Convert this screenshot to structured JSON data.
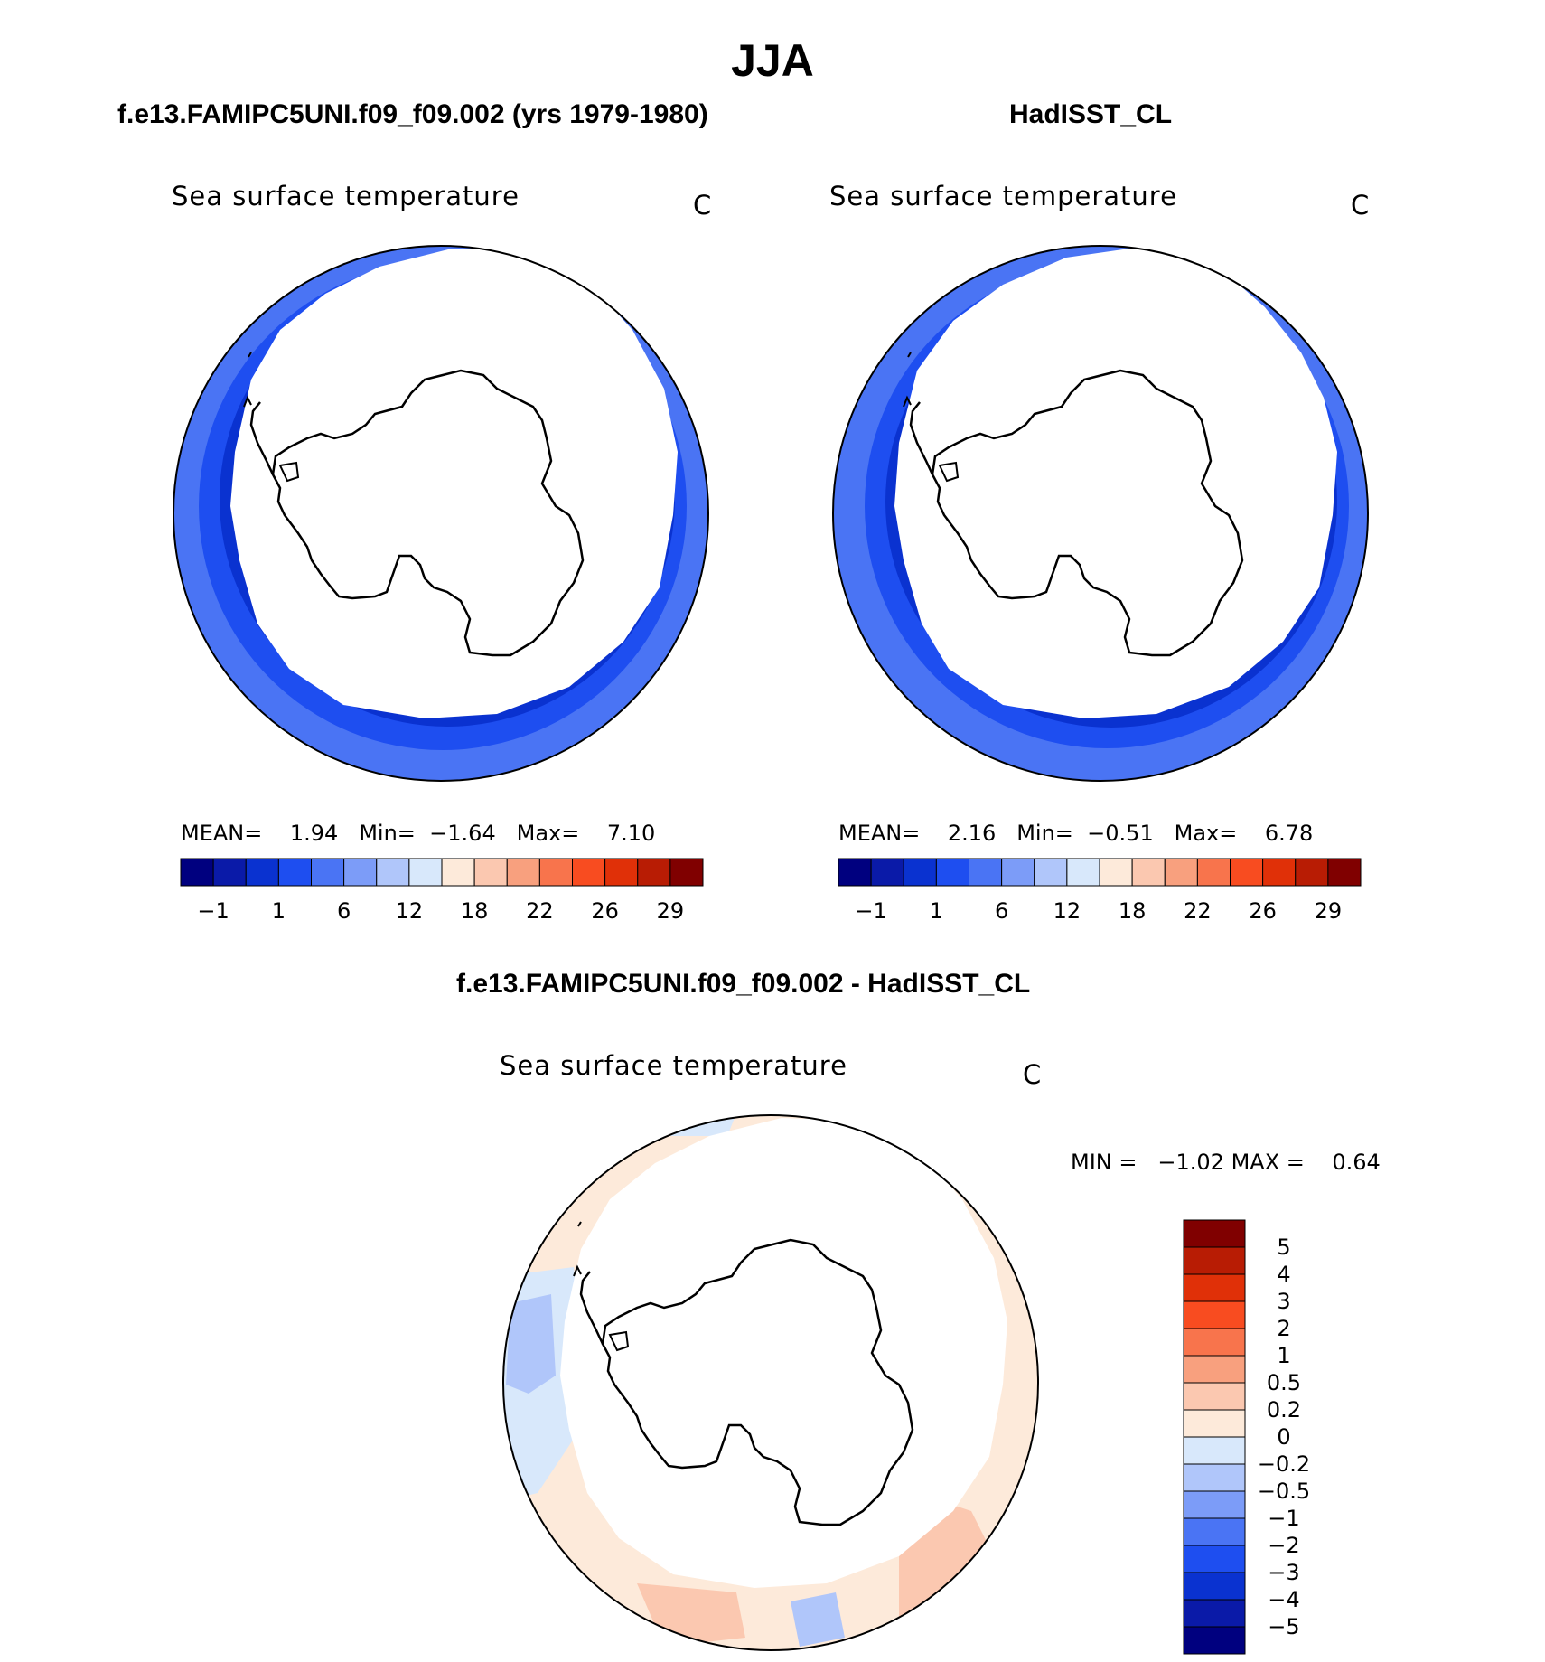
{
  "title": "JJA",
  "panels": [
    {
      "id": "model",
      "header": "f.e13.FAMIPC5UNI.f09_f09.002 (yrs 1979-1980)",
      "plot_title": "Sea surface temperature",
      "units": "C",
      "stats": {
        "mean_label": "MEAN=",
        "mean": "1.94",
        "min_label": "Min=",
        "min": "−1.64",
        "max_label": "Max=",
        "max": "7.10"
      }
    },
    {
      "id": "obs",
      "header": "HadISST_CL",
      "plot_title": "Sea surface temperature",
      "units": "C",
      "stats": {
        "mean_label": "MEAN=",
        "mean": "2.16",
        "min_label": "Min=",
        "min": "−0.51",
        "max_label": "Max=",
        "max": "6.78"
      }
    },
    {
      "id": "diff",
      "header": "f.e13.FAMIPC5UNI.f09_f09.002 - HadISST_CL",
      "plot_title": "Sea surface temperature",
      "units": "C",
      "stats": {
        "min_label": "MIN =",
        "min": "−1.02",
        "max_label": "MAX =",
        "max": "0.64"
      }
    }
  ],
  "colorbar_main": {
    "colors": [
      "#00007f",
      "#0a1aa8",
      "#0a32d0",
      "#1e4ef0",
      "#4a74f4",
      "#7c9cf8",
      "#b0c6fa",
      "#d8e8fb",
      "#fdeada",
      "#fbc8b0",
      "#f8a07e",
      "#f8744c",
      "#f84c20",
      "#e03008",
      "#b81c04",
      "#800000"
    ],
    "tick_labels": [
      "−1",
      "1",
      "6",
      "12",
      "18",
      "22",
      "26",
      "29"
    ]
  },
  "colorbar_diff": {
    "colors": [
      "#800000",
      "#b81c04",
      "#e03008",
      "#f84c20",
      "#f8744c",
      "#f8a07e",
      "#fbc8b0",
      "#fdeada",
      "#d8e8fb",
      "#b0c6fa",
      "#7c9cf8",
      "#4a74f4",
      "#1e4ef0",
      "#0a32d0",
      "#0a1aa8",
      "#00007f"
    ],
    "tick_labels": [
      "5",
      "4",
      "3",
      "2",
      "1",
      "0.5",
      "0.2",
      "0",
      "−0.2",
      "−0.5",
      "−1",
      "−2",
      "−3",
      "−4",
      "−5"
    ]
  },
  "colors": {
    "ice": "#ffffff",
    "cold_band": "#0a32d0",
    "mid_band": "#1e4ef0",
    "warm_band": "#4a74f4",
    "diff_pos": "#fdeada",
    "diff_pos2": "#fbc8b0",
    "diff_neg": "#d8e8fb",
    "diff_neg2": "#b0c6fa"
  }
}
